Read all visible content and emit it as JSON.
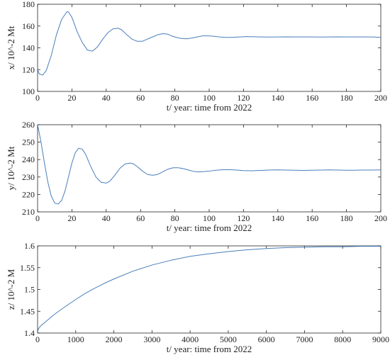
{
  "chart_data": [
    {
      "type": "line",
      "xlabel": "t/ year: time from 2022",
      "ylabel": "x/ 10^-2 Mt",
      "xlim": [
        0,
        200
      ],
      "ylim": [
        100,
        180
      ],
      "xticks": [
        0,
        20,
        40,
        60,
        80,
        100,
        120,
        140,
        160,
        180,
        200
      ],
      "yticks": [
        100,
        120,
        140,
        160,
        180
      ],
      "color": "#4a7ebb",
      "series": [
        {
          "x": [
            0,
            1,
            3,
            5,
            8,
            11,
            14,
            17,
            18,
            20,
            23,
            26,
            29,
            32,
            35,
            38,
            41,
            44,
            47,
            49,
            52,
            55,
            58,
            61,
            64,
            67,
            70,
            73,
            76,
            78,
            81,
            84,
            87,
            90,
            93,
            96,
            99,
            102,
            106,
            110,
            114,
            118,
            122,
            126,
            130,
            135,
            140,
            145,
            150,
            155,
            160,
            165,
            170,
            175,
            180,
            185,
            190,
            195,
            200
          ],
          "y": [
            120,
            116,
            115,
            119,
            133,
            152,
            166,
            173,
            173,
            168,
            155,
            145,
            138,
            137,
            141,
            148,
            154,
            157.5,
            158,
            156.5,
            152,
            148,
            146,
            146,
            148,
            150,
            152,
            153,
            152.5,
            151,
            149.5,
            148.5,
            148.3,
            149,
            150,
            151,
            151,
            150.7,
            150,
            149.5,
            149.7,
            150,
            150.3,
            150.2,
            150,
            149.9,
            150,
            150.1,
            150,
            150,
            150,
            149.9,
            150,
            150.1,
            150,
            150,
            150,
            150,
            149.6
          ]
        }
      ]
    },
    {
      "type": "line",
      "xlabel": "t/ year: time from 2022",
      "ylabel": "y/ 10^-2 Mt",
      "xlim": [
        0,
        200
      ],
      "ylim": [
        210,
        260
      ],
      "xticks": [
        0,
        20,
        40,
        60,
        80,
        100,
        120,
        140,
        160,
        180,
        200
      ],
      "yticks": [
        210,
        220,
        230,
        240,
        250,
        260
      ],
      "color": "#4a7ebb",
      "series": [
        {
          "x": [
            0,
            2,
            4,
            6,
            8,
            10,
            12,
            14,
            16,
            18,
            20,
            22,
            24,
            26,
            28,
            31,
            34,
            37,
            40,
            42,
            45,
            48,
            51,
            54,
            56,
            58,
            61,
            64,
            67,
            70,
            73,
            76,
            79,
            82,
            85,
            88,
            91,
            94,
            97,
            100,
            104,
            108,
            112,
            116,
            120,
            125,
            130,
            135,
            140,
            145,
            150,
            155,
            160,
            165,
            170,
            175,
            180,
            185,
            190,
            195,
            200
          ],
          "y": [
            260,
            250,
            238,
            227,
            219,
            215,
            214.5,
            216.5,
            222,
            230,
            238,
            244,
            246.5,
            246,
            243,
            236,
            230,
            227,
            226.5,
            227.5,
            231,
            235,
            237.5,
            238,
            237.5,
            236,
            233.5,
            231.5,
            231,
            231.5,
            233,
            234.5,
            235.3,
            235.3,
            234.8,
            234,
            233.2,
            232.9,
            233.1,
            233.4,
            233.9,
            234.2,
            234.2,
            234,
            233.7,
            233.6,
            233.8,
            234,
            234.1,
            234,
            233.9,
            233.8,
            233.9,
            234,
            234.1,
            234,
            233.9,
            233.9,
            234,
            234,
            234.1
          ]
        }
      ]
    },
    {
      "type": "line",
      "xlabel": "t/ year: time from 2022",
      "ylabel": "z/ 10^-2 M",
      "xlim": [
        0,
        9000
      ],
      "ylim": [
        1.4,
        1.6
      ],
      "xticks": [
        0,
        1000,
        2000,
        3000,
        4000,
        5000,
        6000,
        7000,
        8000,
        9000
      ],
      "yticks": [
        1.4,
        1.45,
        1.5,
        1.55,
        1.6
      ],
      "yticklabels": [
        "1.4",
        "1.45",
        "1.5",
        "1.55",
        "1.6"
      ],
      "color": "#4a7ebb",
      "series": [
        {
          "x": [
            0,
            25,
            50,
            100,
            200,
            400,
            600,
            800,
            1000,
            1250,
            1500,
            1750,
            2000,
            2500,
            3000,
            3500,
            4000,
            4500,
            5000,
            5500,
            6000,
            6500,
            7000,
            7500,
            8000,
            8500,
            9000
          ],
          "y": [
            1.403,
            1.41,
            1.413,
            1.418,
            1.425,
            1.44,
            1.453,
            1.465,
            1.477,
            1.491,
            1.503,
            1.514,
            1.524,
            1.542,
            1.556,
            1.567,
            1.576,
            1.582,
            1.587,
            1.591,
            1.594,
            1.596,
            1.597,
            1.598,
            1.598,
            1.599,
            1.599
          ]
        }
      ]
    }
  ]
}
